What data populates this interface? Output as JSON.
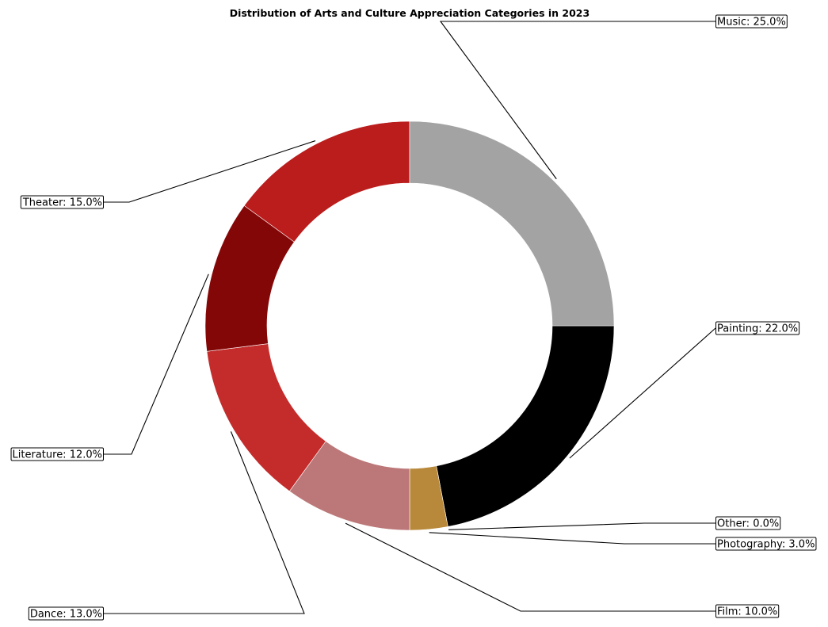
{
  "chart_data": {
    "type": "pie",
    "donut": true,
    "title": "Distribution of Arts and Culture Appreciation Categories in 2023",
    "start_angle_deg": 0,
    "direction": "clockwise",
    "slices": [
      {
        "label": "Painting",
        "value": 22.0,
        "text": "Painting: 22.0%",
        "color": "#000000"
      },
      {
        "label": "Other",
        "value": 0.0,
        "text": "Other: 0.0%",
        "color": "#b8860b"
      },
      {
        "label": "Photography",
        "value": 3.0,
        "text": "Photography: 3.0%",
        "color": "#b8893a"
      },
      {
        "label": "Film",
        "value": 10.0,
        "text": "Film: 10.0%",
        "color": "#bc7778"
      },
      {
        "label": "Dance",
        "value": 13.0,
        "text": "Dance: 13.0%",
        "color": "#c42c2c"
      },
      {
        "label": "Literature",
        "value": 12.0,
        "text": "Literature: 12.0%",
        "color": "#840707"
      },
      {
        "label": "Theater",
        "value": 15.0,
        "text": "Theater: 15.0%",
        "color": "#bb1c1c"
      },
      {
        "label": "Music",
        "value": 25.0,
        "text": "Music: 25.0%",
        "color": "#a3a3a3"
      }
    ]
  }
}
